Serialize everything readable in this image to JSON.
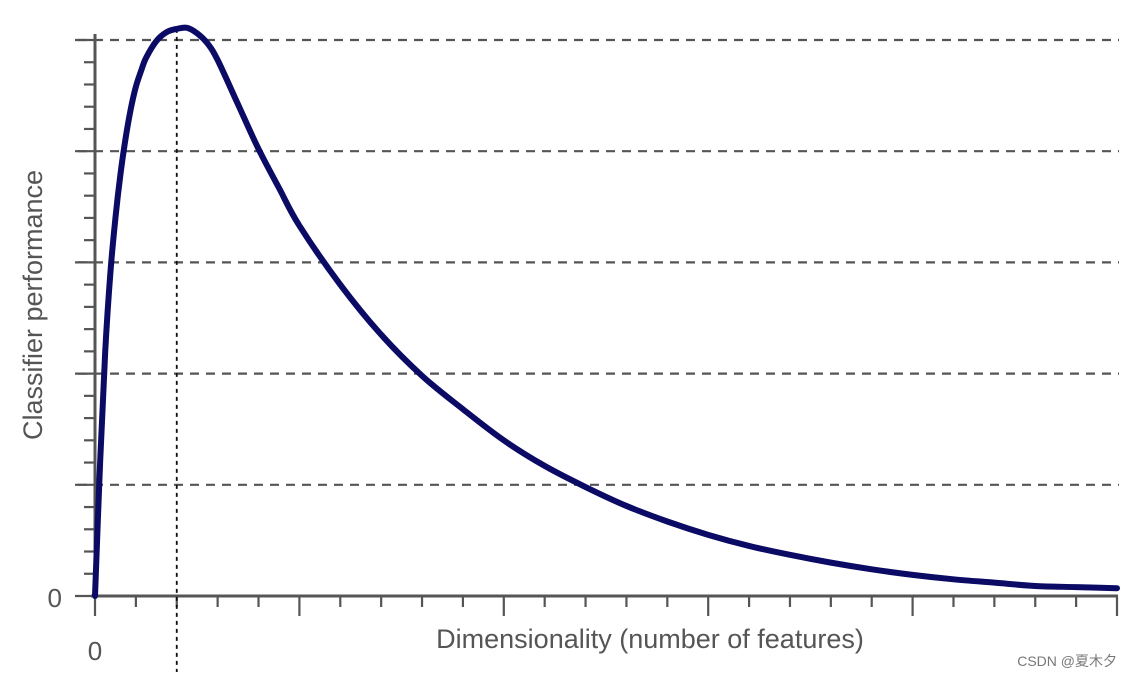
{
  "chart_data": {
    "type": "line",
    "title": "",
    "xlabel": "Dimensionality (number of features)",
    "ylabel": "Classifier performance",
    "x_tick_labels": [
      "0"
    ],
    "y_tick_labels": [
      "0"
    ],
    "xlim": [
      0,
      100
    ],
    "ylim": [
      0,
      5
    ],
    "grid": {
      "y": true,
      "style": "dashed",
      "levels": [
        1,
        2,
        3,
        4,
        5
      ]
    },
    "x_major_ticks": [
      0,
      20,
      40,
      60,
      80,
      100
    ],
    "x_minor_step": 4,
    "y_major_ticks": [
      0,
      1,
      2,
      3,
      4,
      5
    ],
    "y_minor_step": 0.2,
    "optimum_marker": {
      "x": 8,
      "style": "dotted"
    },
    "series": [
      {
        "color": "#0b0b66",
        "points": [
          [
            0,
            0.0
          ],
          [
            0.5,
            1.2
          ],
          [
            1,
            2.2
          ],
          [
            1.5,
            2.9
          ],
          [
            2,
            3.4
          ],
          [
            2.5,
            3.8
          ],
          [
            3,
            4.12
          ],
          [
            3.5,
            4.38
          ],
          [
            4,
            4.58
          ],
          [
            4.5,
            4.72
          ],
          [
            5,
            4.84
          ],
          [
            6,
            4.99
          ],
          [
            7,
            5.07
          ],
          [
            8,
            5.1
          ],
          [
            9,
            5.11
          ],
          [
            10,
            5.06
          ],
          [
            11,
            4.97
          ],
          [
            12,
            4.82
          ],
          [
            14,
            4.42
          ],
          [
            16,
            4.02
          ],
          [
            18,
            3.67
          ],
          [
            20,
            3.33
          ],
          [
            24,
            2.8
          ],
          [
            28,
            2.35
          ],
          [
            32,
            1.98
          ],
          [
            36,
            1.68
          ],
          [
            40,
            1.4
          ],
          [
            44,
            1.17
          ],
          [
            48,
            0.98
          ],
          [
            52,
            0.81
          ],
          [
            56,
            0.67
          ],
          [
            60,
            0.55
          ],
          [
            64,
            0.45
          ],
          [
            68,
            0.37
          ],
          [
            72,
            0.3
          ],
          [
            76,
            0.24
          ],
          [
            80,
            0.19
          ],
          [
            84,
            0.15
          ],
          [
            88,
            0.12
          ],
          [
            92,
            0.09
          ],
          [
            96,
            0.08
          ],
          [
            100,
            0.07
          ]
        ]
      }
    ]
  },
  "watermark": "CSDN @夏木夕"
}
